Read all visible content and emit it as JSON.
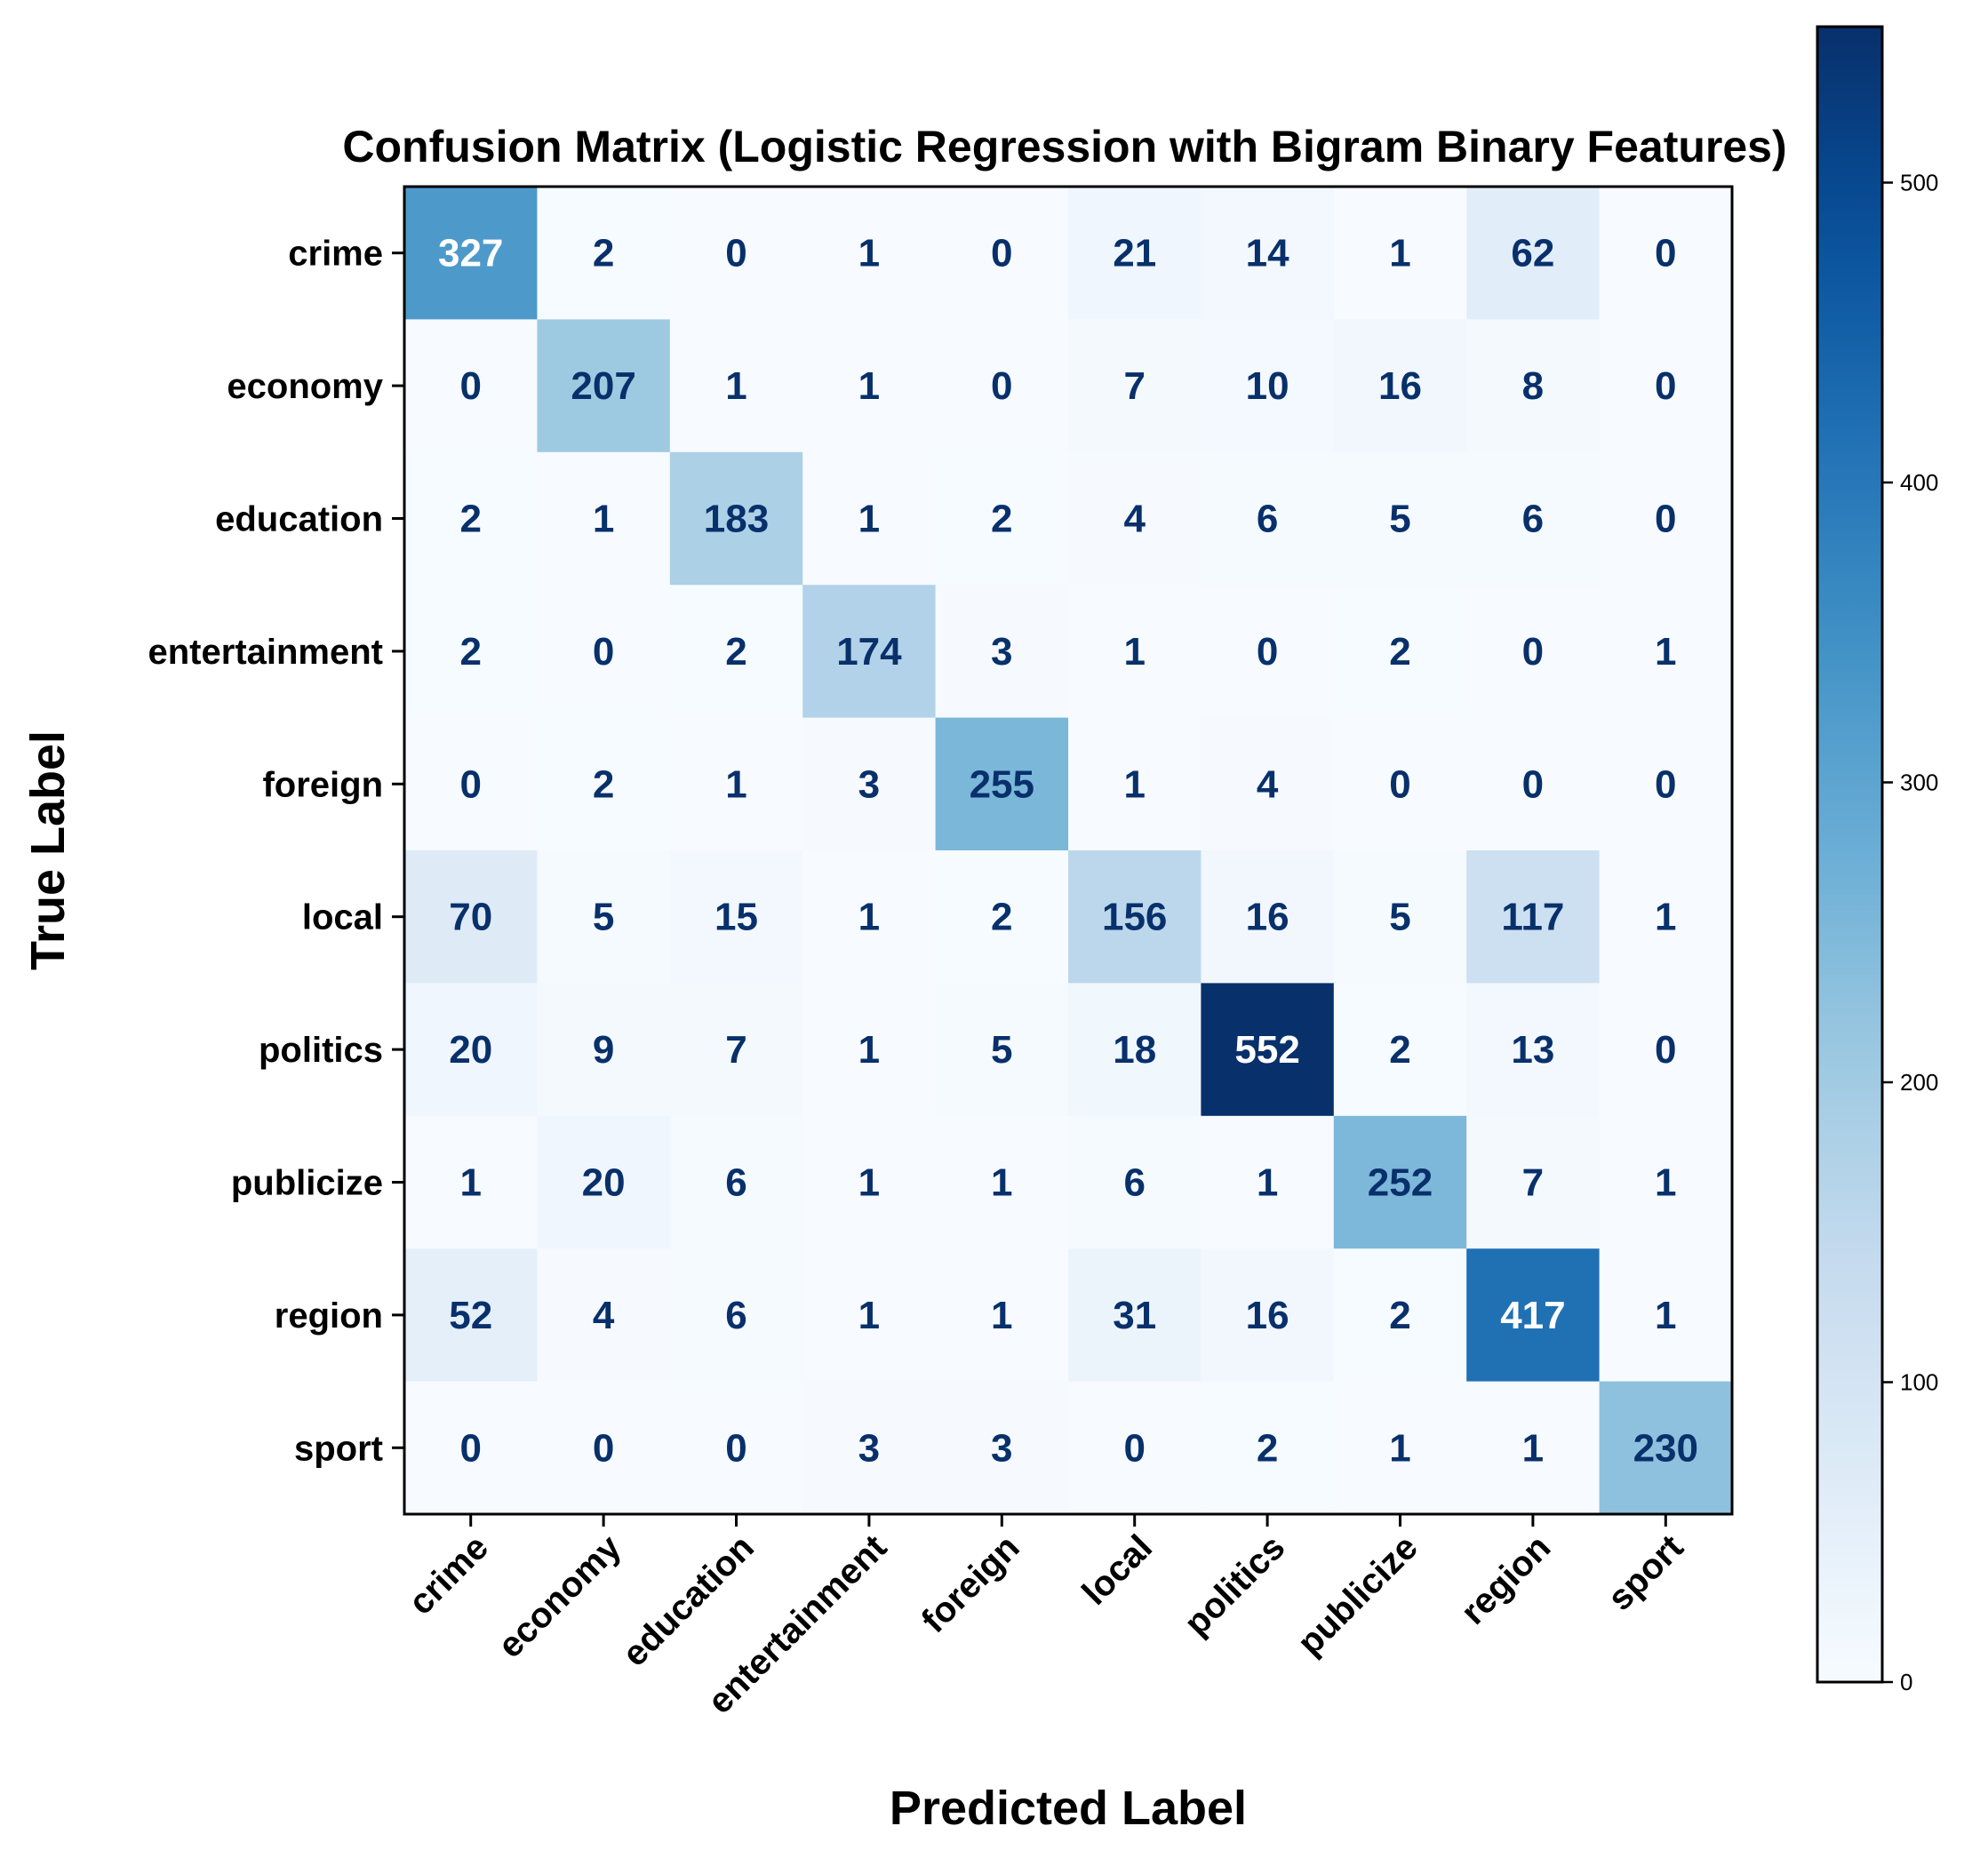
{
  "chart_data": {
    "type": "heatmap",
    "title": "Confusion Matrix (Logistic Regression with Bigram Binary Features)",
    "xlabel": "Predicted Label",
    "ylabel": "True Label",
    "x_categories": [
      "crime",
      "economy",
      "education",
      "entertainment",
      "foreign",
      "local",
      "politics",
      "publicize",
      "region",
      "sport"
    ],
    "y_categories": [
      "crime",
      "economy",
      "education",
      "entertainment",
      "foreign",
      "local",
      "politics",
      "publicize",
      "region",
      "sport"
    ],
    "values": [
      [
        327,
        2,
        0,
        1,
        0,
        21,
        14,
        1,
        62,
        0
      ],
      [
        0,
        207,
        1,
        1,
        0,
        7,
        10,
        16,
        8,
        0
      ],
      [
        2,
        1,
        183,
        1,
        2,
        4,
        6,
        5,
        6,
        0
      ],
      [
        2,
        0,
        2,
        174,
        3,
        1,
        0,
        2,
        0,
        1
      ],
      [
        0,
        2,
        1,
        3,
        255,
        1,
        4,
        0,
        0,
        0
      ],
      [
        70,
        5,
        15,
        1,
        2,
        156,
        16,
        5,
        117,
        1
      ],
      [
        20,
        9,
        7,
        1,
        5,
        18,
        552,
        2,
        13,
        0
      ],
      [
        1,
        20,
        6,
        1,
        1,
        6,
        1,
        252,
        7,
        1
      ],
      [
        52,
        4,
        6,
        1,
        1,
        31,
        16,
        2,
        417,
        1
      ],
      [
        0,
        0,
        0,
        3,
        3,
        0,
        2,
        1,
        1,
        230
      ]
    ],
    "colorbar": {
      "colormap": "Blues",
      "range": [
        0,
        552
      ],
      "ticks": [
        0,
        100,
        200,
        300,
        400,
        500
      ],
      "tick_labels": [
        "0",
        "100",
        "200",
        "300",
        "400",
        "500"
      ]
    },
    "colors": {
      "low": "#f7fbff",
      "high": "#08306b",
      "text_dark": "#08306b",
      "text_light": "#ffffff"
    },
    "grid": false,
    "x_tick_rotation_deg": 45
  }
}
